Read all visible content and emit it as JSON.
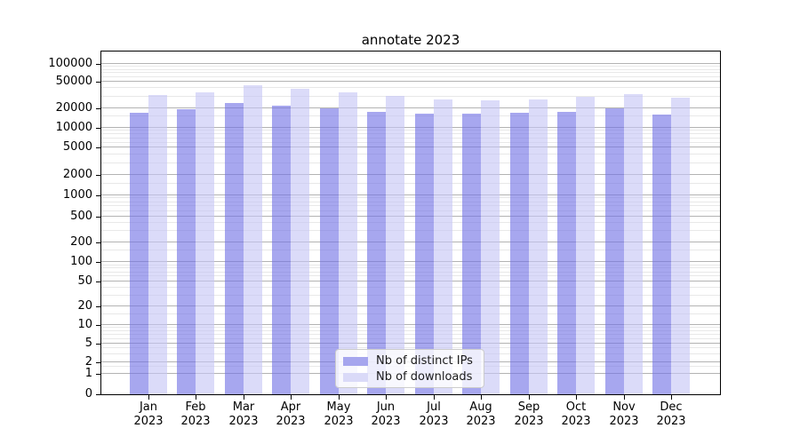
{
  "chart_data": {
    "type": "bar",
    "title": "annotate 2023",
    "yscale": "symlog",
    "grid": true,
    "legend_position": "lower center",
    "background": "#ffffff",
    "categories": [
      "Jan 2023",
      "Feb 2023",
      "Mar 2023",
      "Apr 2023",
      "May 2023",
      "Jun 2023",
      "Jul 2023",
      "Aug 2023",
      "Sep 2023",
      "Oct 2023",
      "Nov 2023",
      "Dec 2023"
    ],
    "x_tick_lines": [
      {
        "month": "Jan",
        "year": "2023"
      },
      {
        "month": "Feb",
        "year": "2023"
      },
      {
        "month": "Mar",
        "year": "2023"
      },
      {
        "month": "Apr",
        "year": "2023"
      },
      {
        "month": "May",
        "year": "2023"
      },
      {
        "month": "Jun",
        "year": "2023"
      },
      {
        "month": "Jul",
        "year": "2023"
      },
      {
        "month": "Aug",
        "year": "2023"
      },
      {
        "month": "Sep",
        "year": "2023"
      },
      {
        "month": "Oct",
        "year": "2023"
      },
      {
        "month": "Nov",
        "year": "2023"
      },
      {
        "month": "Dec",
        "year": "2023"
      }
    ],
    "y_ticks": [
      0,
      1,
      2,
      5,
      10,
      20,
      50,
      100,
      200,
      500,
      1000,
      2000,
      5000,
      10000,
      20000,
      50000,
      100000
    ],
    "ylim": [
      0,
      150000
    ],
    "series": [
      {
        "name": "Nb of distinct IPs",
        "color": "#a6a6ee",
        "fill": "rgba(113,113,229,0.62)",
        "values": [
          17000,
          19300,
          24000,
          21500,
          19500,
          17700,
          16300,
          16300,
          17000,
          17500,
          19800,
          16100
        ]
      },
      {
        "name": "Nb of downloads",
        "color": "#dadaf8",
        "fill": "rgba(197,197,246,0.62)",
        "values": [
          31000,
          34700,
          44000,
          39500,
          34500,
          30800,
          27200,
          25900,
          27200,
          30000,
          32700,
          28600
        ]
      }
    ],
    "grid_colors": {
      "major": "#b3b3b3",
      "minor": "#e8e8e8"
    }
  },
  "legend": {
    "items": [
      {
        "label": "Nb of distinct IPs",
        "color": "#a6a6ee"
      },
      {
        "label": "Nb of downloads",
        "color": "#dadaf8"
      }
    ]
  }
}
